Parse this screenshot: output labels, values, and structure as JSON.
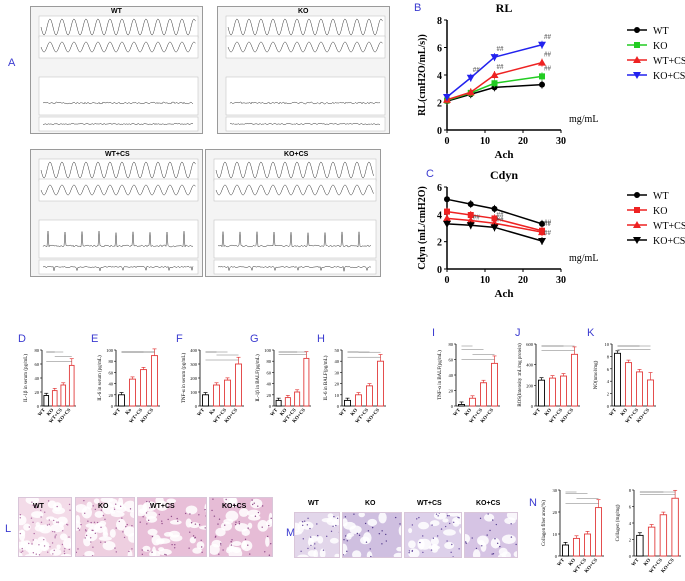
{
  "figure": {
    "letters": {
      "A": "A",
      "B": "B",
      "C": "C",
      "D": "D",
      "E": "E",
      "F": "F",
      "G": "G",
      "H": "H",
      "I": "I",
      "J": "J",
      "K": "K",
      "L": "L",
      "M": "M",
      "N": "N"
    },
    "tracings": [
      {
        "label": "WT"
      },
      {
        "label": "KO"
      },
      {
        "label": "WT+CS"
      },
      {
        "label": "KO+CS"
      }
    ],
    "histology_L": [
      "WT",
      "KO",
      "WT+CS",
      "KO+CS"
    ],
    "histology_M": [
      "WT",
      "KO",
      "WT+CS",
      "KO+CS"
    ],
    "colors": {
      "WT": "#000000",
      "KO": "#22cc22",
      "WT_CS": "#ee2222",
      "KO_CS": "#2222ee",
      "bar_red": "#e23b3b",
      "letter": "#3b3bd0"
    }
  },
  "chart_data": [
    {
      "id": "B",
      "type": "line",
      "title": "RL",
      "xlabel": "Ach",
      "xunit": "mg/mL",
      "ylabel": "RL(cmH2O/mL/s))",
      "xlim": [
        0,
        30
      ],
      "ylim": [
        0,
        8
      ],
      "xticks": [
        0,
        10,
        20,
        30
      ],
      "yticks": [
        0,
        2,
        4,
        6,
        8
      ],
      "x": [
        0,
        6.25,
        12.5,
        25
      ],
      "series": [
        {
          "name": "WT",
          "color": "#000000",
          "marker": "circle",
          "values": [
            2.1,
            2.6,
            3.1,
            3.3
          ]
        },
        {
          "name": "KO",
          "color": "#22cc22",
          "marker": "square",
          "values": [
            2.15,
            2.7,
            3.4,
            3.9
          ]
        },
        {
          "name": "WT+CS",
          "color": "#ee2222",
          "marker": "triangle",
          "values": [
            2.2,
            2.75,
            4.0,
            4.9
          ]
        },
        {
          "name": "KO+CS",
          "color": "#2222ee",
          "marker": "triangle-down",
          "values": [
            2.4,
            3.8,
            5.3,
            6.2
          ]
        }
      ],
      "annotations": [
        "##",
        "##",
        "##",
        "##",
        "##",
        "##"
      ]
    },
    {
      "id": "C",
      "type": "line",
      "title": "Cdyn",
      "xlabel": "Ach",
      "xunit": "mg/mL",
      "ylabel": "Cdyn (mL/cmH2O)",
      "xlim": [
        0,
        30
      ],
      "ylim": [
        0,
        6
      ],
      "xticks": [
        0,
        10,
        20,
        30
      ],
      "yticks": [
        0,
        2,
        4,
        6
      ],
      "x": [
        0,
        6.25,
        12.5,
        25
      ],
      "series": [
        {
          "name": "WT",
          "color": "#000000",
          "marker": "circle",
          "values": [
            5.1,
            4.75,
            4.4,
            3.3
          ]
        },
        {
          "name": "KO",
          "color": "#ee2222",
          "marker": "square",
          "values": [
            4.2,
            3.95,
            3.7,
            2.8
          ]
        },
        {
          "name": "WT+CS",
          "color": "#ee2222",
          "marker": "triangle",
          "values": [
            3.7,
            3.55,
            3.35,
            2.7
          ]
        },
        {
          "name": "KO+CS",
          "color": "#000000",
          "marker": "triangle-down",
          "values": [
            3.3,
            3.2,
            3.05,
            2.05
          ]
        }
      ],
      "annotations": [
        "##",
        "##",
        "##",
        "##",
        "##",
        "##"
      ]
    },
    {
      "id": "D",
      "type": "bar",
      "ylabel": "IL-1β in serum (pg/mL)",
      "categories": [
        "WT",
        "KO",
        "WT+CS",
        "KO+CS"
      ],
      "values": [
        15,
        22,
        30,
        58
      ],
      "ylim": [
        0,
        80
      ],
      "yticks": [
        0,
        20,
        40,
        60,
        80
      ]
    },
    {
      "id": "E",
      "type": "bar",
      "ylabel": "IL-6 in serum (pg/mL)",
      "categories": [
        "WT",
        "Ko",
        "WT+CS",
        "KO+CS"
      ],
      "values": [
        20,
        48,
        65,
        90
      ],
      "ylim": [
        0,
        100
      ],
      "yticks": [
        0,
        20,
        40,
        60,
        80,
        100
      ]
    },
    {
      "id": "F",
      "type": "bar",
      "ylabel": "TNF-α in serum (pg/mL)",
      "categories": [
        "WT",
        "Ko",
        "WT+CS",
        "KO+CS"
      ],
      "values": [
        80,
        150,
        185,
        300
      ],
      "ylim": [
        0,
        400
      ],
      "yticks": [
        0,
        100,
        200,
        300,
        400
      ]
    },
    {
      "id": "G",
      "type": "bar",
      "ylabel": "IL-1β in BALF(pg/mL)",
      "categories": [
        "WT",
        "KO",
        "WT+CS",
        "KO+CS"
      ],
      "values": [
        10,
        15,
        25,
        85
      ],
      "ylim": [
        0,
        100
      ],
      "yticks": [
        0,
        20,
        40,
        60,
        80,
        100
      ]
    },
    {
      "id": "H",
      "type": "bar",
      "ylabel": "IL-6 in BALF(pg/mL)",
      "categories": [
        "WT",
        "KO",
        "WT+CS",
        "KO+CS"
      ],
      "values": [
        5,
        10,
        18,
        40
      ],
      "ylim": [
        0,
        50
      ],
      "yticks": [
        0,
        10,
        20,
        30,
        40,
        50
      ]
    },
    {
      "id": "I",
      "type": "bar",
      "ylabel": "TNF-α in BALF(pg/mL)",
      "categories": [
        "WT",
        "KO",
        "WT+CS",
        "KO+CS"
      ],
      "values": [
        2,
        10,
        30,
        55
      ],
      "ylim": [
        0,
        80
      ],
      "yticks": [
        0,
        20,
        40,
        60,
        80
      ]
    },
    {
      "id": "J",
      "type": "bar",
      "ylabel": "ROS(Intensity :mL/mg protein)",
      "categories": [
        "WT",
        "KO",
        "WT+CS",
        "KO+CS"
      ],
      "values": [
        250,
        270,
        290,
        500
      ],
      "ylim": [
        0,
        600
      ],
      "yticks": [
        0,
        200,
        400,
        600
      ]
    },
    {
      "id": "K",
      "type": "bar",
      "ylabel": "NO(nmol/mg)",
      "categories": [
        "WT",
        "KO",
        "WT+CS",
        "KO+CS"
      ],
      "values": [
        8.5,
        7,
        5.5,
        4.2
      ],
      "ylim": [
        0,
        10
      ],
      "yticks": [
        0,
        2,
        4,
        6,
        8,
        10
      ]
    },
    {
      "id": "N1",
      "type": "bar",
      "ylabel": "Collagen fiber area(%)",
      "categories": [
        "WT",
        "KO",
        "WT+CS",
        "KO+CS"
      ],
      "values": [
        5,
        8,
        10,
        22
      ],
      "ylim": [
        0,
        30
      ],
      "yticks": [
        0,
        10,
        20,
        30
      ]
    },
    {
      "id": "N2",
      "type": "bar",
      "ylabel": "Collagen (mg/mg)",
      "categories": [
        "WT",
        "KO",
        "WT+CS",
        "KO+CS"
      ],
      "values": [
        2.5,
        3.5,
        5,
        7
      ],
      "ylim": [
        0,
        8
      ],
      "yticks": [
        0,
        2,
        4,
        6,
        8
      ]
    }
  ]
}
